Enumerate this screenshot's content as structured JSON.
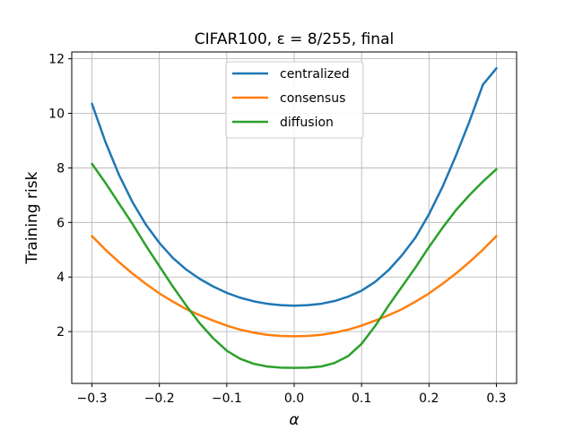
{
  "chart_data": {
    "type": "line",
    "title": "CIFAR100, ε = 8/255, final",
    "xlabel": "α",
    "ylabel": "Training risk",
    "xlim": [
      -0.33,
      0.33
    ],
    "ylim": [
      0.1,
      12.25
    ],
    "xticks": [
      -0.3,
      -0.2,
      -0.1,
      0.0,
      0.1,
      0.2,
      0.3
    ],
    "xtick_labels": [
      "−0.3",
      "−0.2",
      "−0.1",
      "0.0",
      "0.1",
      "0.2",
      "0.3"
    ],
    "yticks": [
      2,
      4,
      6,
      8,
      10,
      12
    ],
    "ytick_labels": [
      "2",
      "4",
      "6",
      "8",
      "10",
      "12"
    ],
    "grid": true,
    "legend_position": "top-center",
    "x": [
      -0.3,
      -0.28,
      -0.26,
      -0.24,
      -0.22,
      -0.2,
      -0.18,
      -0.16,
      -0.14,
      -0.12,
      -0.1,
      -0.08,
      -0.06,
      -0.04,
      -0.02,
      0.0,
      0.02,
      0.04,
      0.06,
      0.08,
      0.1,
      0.12,
      0.14,
      0.16,
      0.18,
      0.2,
      0.22,
      0.24,
      0.26,
      0.28,
      0.3
    ],
    "series": [
      {
        "name": "centralized",
        "color": "#1f77b4",
        "values": [
          10.35,
          8.95,
          7.75,
          6.75,
          5.92,
          5.25,
          4.7,
          4.27,
          3.93,
          3.65,
          3.42,
          3.24,
          3.11,
          3.02,
          2.97,
          2.95,
          2.97,
          3.02,
          3.12,
          3.28,
          3.5,
          3.82,
          4.25,
          4.8,
          5.45,
          6.3,
          7.3,
          8.45,
          9.7,
          11.05,
          11.65
        ]
      },
      {
        "name": "consensus",
        "color": "#ff7f0e",
        "values": [
          5.5,
          5.0,
          4.55,
          4.13,
          3.75,
          3.4,
          3.1,
          2.82,
          2.6,
          2.4,
          2.22,
          2.07,
          1.96,
          1.88,
          1.84,
          1.83,
          1.84,
          1.88,
          1.96,
          2.07,
          2.22,
          2.4,
          2.6,
          2.82,
          3.1,
          3.4,
          3.75,
          4.13,
          4.55,
          5.0,
          5.5
        ]
      },
      {
        "name": "diffusion",
        "color": "#2ca02c",
        "values": [
          8.15,
          7.45,
          6.7,
          5.95,
          5.15,
          4.4,
          3.65,
          2.95,
          2.3,
          1.75,
          1.3,
          1.0,
          0.82,
          0.72,
          0.68,
          0.67,
          0.68,
          0.72,
          0.85,
          1.1,
          1.55,
          2.2,
          2.95,
          3.65,
          4.35,
          5.1,
          5.8,
          6.45,
          7.0,
          7.5,
          7.95
        ]
      }
    ]
  }
}
